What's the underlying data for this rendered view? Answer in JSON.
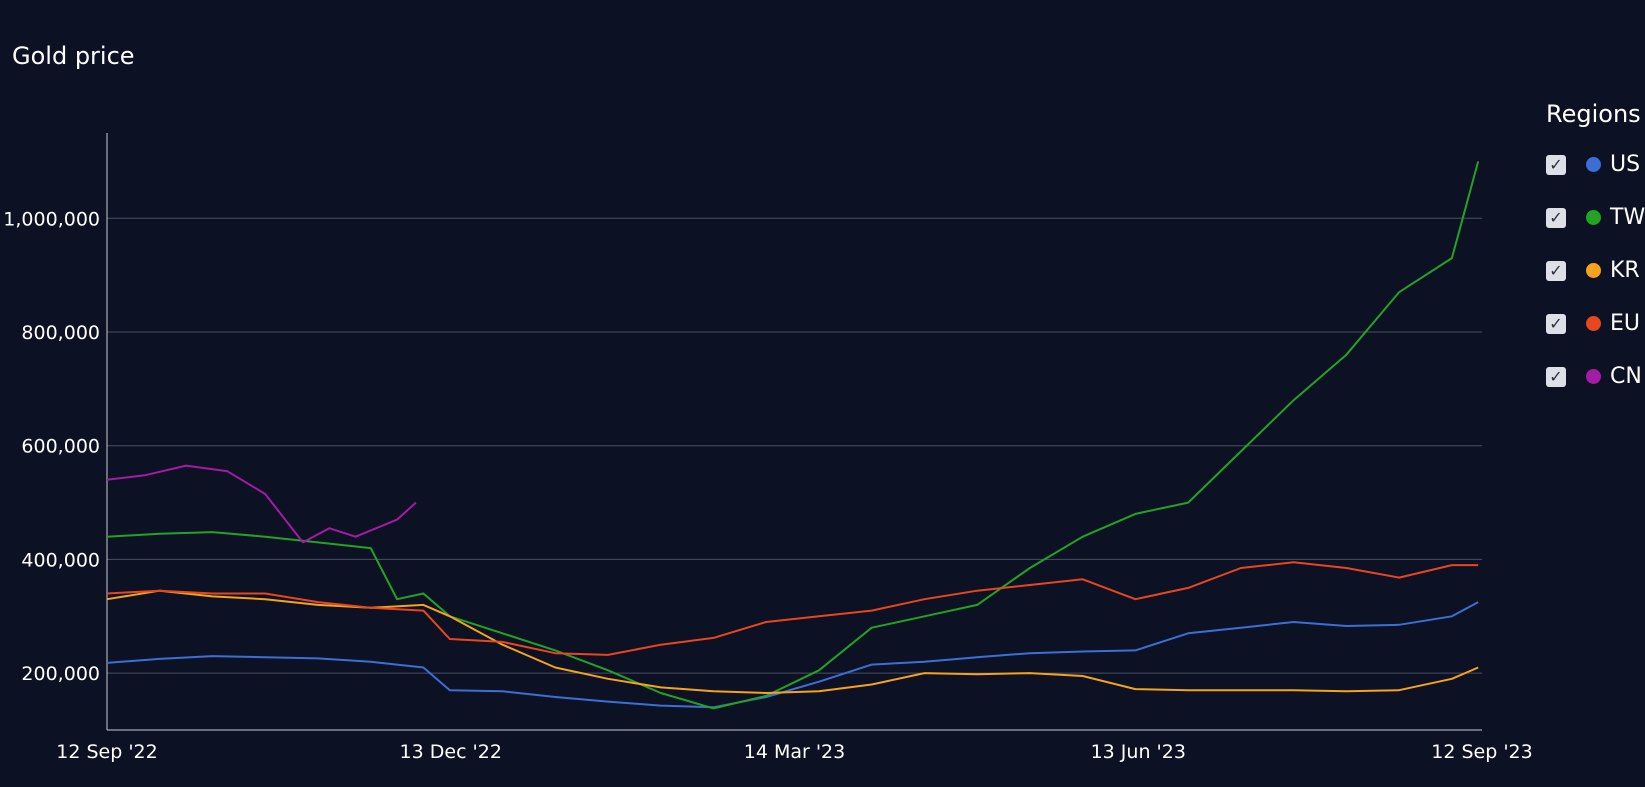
{
  "chart_data": {
    "type": "line",
    "title": "Gold price",
    "xlabel": "",
    "ylabel": "",
    "x_tick_labels": [
      "12 Sep '22",
      "13 Dec '22",
      "14 Mar '23",
      "13 Jun '23",
      "12 Sep '23"
    ],
    "y_tick_labels": [
      "200,000",
      "400,000",
      "600,000",
      "800,000",
      "1,000,000"
    ],
    "y_ticks": [
      200000,
      400000,
      600000,
      800000,
      1000000
    ],
    "ylim": [
      100000,
      1150000
    ],
    "xlim": [
      "2022-09-12",
      "2023-09-12"
    ],
    "grid": "horizontal",
    "legend": {
      "title": "Regions",
      "placement": "right"
    },
    "series": [
      {
        "name": "US",
        "color": "#3b6fd6",
        "points": [
          [
            "2022-09-12",
            218000
          ],
          [
            "2022-09-26",
            225000
          ],
          [
            "2022-10-10",
            230000
          ],
          [
            "2022-10-24",
            228000
          ],
          [
            "2022-11-07",
            226000
          ],
          [
            "2022-11-21",
            220000
          ],
          [
            "2022-12-05",
            210000
          ],
          [
            "2022-12-12",
            170000
          ],
          [
            "2022-12-26",
            168000
          ],
          [
            "2023-01-09",
            158000
          ],
          [
            "2023-01-23",
            150000
          ],
          [
            "2023-02-06",
            143000
          ],
          [
            "2023-02-20",
            140000
          ],
          [
            "2023-03-06",
            158000
          ],
          [
            "2023-03-20",
            185000
          ],
          [
            "2023-04-03",
            215000
          ],
          [
            "2023-04-17",
            220000
          ],
          [
            "2023-05-01",
            228000
          ],
          [
            "2023-05-15",
            235000
          ],
          [
            "2023-05-29",
            238000
          ],
          [
            "2023-06-12",
            240000
          ],
          [
            "2023-06-26",
            270000
          ],
          [
            "2023-07-10",
            280000
          ],
          [
            "2023-07-24",
            290000
          ],
          [
            "2023-08-07",
            283000
          ],
          [
            "2023-08-21",
            285000
          ],
          [
            "2023-09-04",
            300000
          ],
          [
            "2023-09-11",
            325000
          ]
        ]
      },
      {
        "name": "TW",
        "color": "#23a323",
        "points": [
          [
            "2022-09-12",
            440000
          ],
          [
            "2022-09-26",
            445000
          ],
          [
            "2022-10-10",
            448000
          ],
          [
            "2022-10-24",
            440000
          ],
          [
            "2022-11-07",
            430000
          ],
          [
            "2022-11-21",
            420000
          ],
          [
            "2022-11-28",
            330000
          ],
          [
            "2022-12-05",
            340000
          ],
          [
            "2022-12-12",
            300000
          ],
          [
            "2022-12-26",
            270000
          ],
          [
            "2023-01-09",
            240000
          ],
          [
            "2023-01-23",
            205000
          ],
          [
            "2023-02-06",
            165000
          ],
          [
            "2023-02-20",
            138000
          ],
          [
            "2023-03-06",
            160000
          ],
          [
            "2023-03-20",
            205000
          ],
          [
            "2023-04-03",
            280000
          ],
          [
            "2023-04-17",
            300000
          ],
          [
            "2023-05-01",
            320000
          ],
          [
            "2023-05-15",
            385000
          ],
          [
            "2023-05-29",
            440000
          ],
          [
            "2023-06-12",
            480000
          ],
          [
            "2023-06-26",
            500000
          ],
          [
            "2023-07-10",
            590000
          ],
          [
            "2023-07-24",
            680000
          ],
          [
            "2023-08-07",
            760000
          ],
          [
            "2023-08-21",
            870000
          ],
          [
            "2023-09-04",
            930000
          ],
          [
            "2023-09-11",
            1100000
          ]
        ]
      },
      {
        "name": "KR",
        "color": "#f6a21c",
        "points": [
          [
            "2022-09-12",
            330000
          ],
          [
            "2022-09-26",
            345000
          ],
          [
            "2022-10-10",
            335000
          ],
          [
            "2022-10-24",
            330000
          ],
          [
            "2022-11-07",
            320000
          ],
          [
            "2022-11-21",
            315000
          ],
          [
            "2022-12-05",
            320000
          ],
          [
            "2022-12-12",
            300000
          ],
          [
            "2022-12-26",
            250000
          ],
          [
            "2023-01-09",
            210000
          ],
          [
            "2023-01-23",
            190000
          ],
          [
            "2023-02-06",
            175000
          ],
          [
            "2023-02-20",
            168000
          ],
          [
            "2023-03-06",
            165000
          ],
          [
            "2023-03-20",
            168000
          ],
          [
            "2023-04-03",
            180000
          ],
          [
            "2023-04-17",
            200000
          ],
          [
            "2023-05-01",
            198000
          ],
          [
            "2023-05-15",
            200000
          ],
          [
            "2023-05-29",
            195000
          ],
          [
            "2023-06-12",
            172000
          ],
          [
            "2023-06-26",
            170000
          ],
          [
            "2023-07-10",
            170000
          ],
          [
            "2023-07-24",
            170000
          ],
          [
            "2023-08-07",
            168000
          ],
          [
            "2023-08-21",
            170000
          ],
          [
            "2023-09-04",
            190000
          ],
          [
            "2023-09-11",
            210000
          ]
        ]
      },
      {
        "name": "EU",
        "color": "#e8471e",
        "points": [
          [
            "2022-09-12",
            340000
          ],
          [
            "2022-09-26",
            345000
          ],
          [
            "2022-10-10",
            340000
          ],
          [
            "2022-10-24",
            340000
          ],
          [
            "2022-11-07",
            325000
          ],
          [
            "2022-11-21",
            315000
          ],
          [
            "2022-12-05",
            310000
          ],
          [
            "2022-12-12",
            260000
          ],
          [
            "2022-12-26",
            255000
          ],
          [
            "2023-01-09",
            235000
          ],
          [
            "2023-01-23",
            232000
          ],
          [
            "2023-02-06",
            250000
          ],
          [
            "2023-02-20",
            262000
          ],
          [
            "2023-03-06",
            290000
          ],
          [
            "2023-03-20",
            300000
          ],
          [
            "2023-04-03",
            310000
          ],
          [
            "2023-04-17",
            330000
          ],
          [
            "2023-05-01",
            345000
          ],
          [
            "2023-05-15",
            355000
          ],
          [
            "2023-05-29",
            365000
          ],
          [
            "2023-06-12",
            330000
          ],
          [
            "2023-06-26",
            350000
          ],
          [
            "2023-07-10",
            385000
          ],
          [
            "2023-07-24",
            395000
          ],
          [
            "2023-08-07",
            385000
          ],
          [
            "2023-08-21",
            368000
          ],
          [
            "2023-09-04",
            390000
          ],
          [
            "2023-09-11",
            390000
          ]
        ]
      },
      {
        "name": "CN",
        "color": "#a41ba4",
        "points": [
          [
            "2022-09-12",
            540000
          ],
          [
            "2022-09-22",
            548000
          ],
          [
            "2022-10-03",
            565000
          ],
          [
            "2022-10-14",
            555000
          ],
          [
            "2022-10-24",
            515000
          ],
          [
            "2022-11-03",
            430000
          ],
          [
            "2022-11-10",
            455000
          ],
          [
            "2022-11-17",
            440000
          ],
          [
            "2022-11-28",
            470000
          ],
          [
            "2022-12-03",
            500000
          ]
        ]
      }
    ]
  },
  "legend_ui": {
    "title": "Regions",
    "items": [
      {
        "label": "US",
        "color": "#3b6fd6"
      },
      {
        "label": "TW",
        "color": "#23a323"
      },
      {
        "label": "KR",
        "color": "#f6a21c"
      },
      {
        "label": "EU",
        "color": "#e8471e"
      },
      {
        "label": "CN",
        "color": "#a41ba4"
      }
    ],
    "check_glyph": "✓"
  }
}
